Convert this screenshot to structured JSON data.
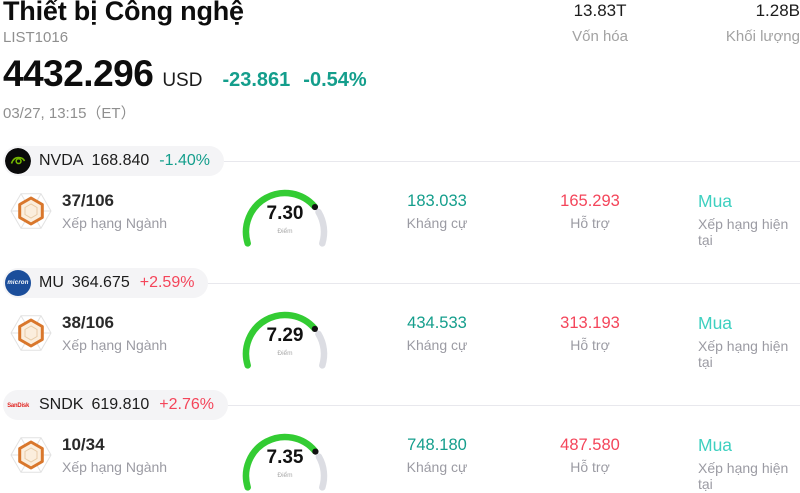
{
  "colors": {
    "teal": "#149e8c",
    "teal_light": "#3ed0c0",
    "red": "#f4455a",
    "gauge_green": "#33cc33",
    "gauge_track": "#dcdde3"
  },
  "header": {
    "title": "Thiết bị Công nghệ",
    "list_id": "LIST1016",
    "price": "4432.296",
    "currency": "USD",
    "change_amount": "-23.861",
    "change_percent": "-0.54%",
    "datetime": "03/27, 13:15（ET）",
    "market_cap": {
      "value": "13.83T",
      "label": "Vốn hóa"
    },
    "volume": {
      "value": "1.28B",
      "label": "Khối lượng"
    }
  },
  "labels": {
    "rank": "Xếp hạng Ngành",
    "score": "Điểm",
    "resistance": "Kháng cự",
    "support": "Hỗ trợ",
    "rating": "Xếp hạng hiện tại"
  },
  "rows": [
    {
      "symbol": "NVDA",
      "price": "168.840",
      "change": "-1.40%",
      "direction": "down",
      "logo": "nvidia-logo",
      "logo_text": "",
      "rank": "37/106",
      "score": 7.3,
      "score_display": "7.30",
      "score_max": 10,
      "resistance": "183.033",
      "support": "165.293",
      "rating": "Mua"
    },
    {
      "symbol": "MU",
      "price": "364.675",
      "change": "+2.59%",
      "direction": "up",
      "logo": "micron-logo",
      "logo_text": "micron",
      "rank": "38/106",
      "score": 7.29,
      "score_display": "7.29",
      "score_max": 10,
      "resistance": "434.533",
      "support": "313.193",
      "rating": "Mua"
    },
    {
      "symbol": "SNDK",
      "price": "619.810",
      "change": "+2.76%",
      "direction": "up",
      "logo": "sandisk-logo",
      "logo_text": "SanDisk",
      "rank": "10/34",
      "score": 7.35,
      "score_display": "7.35",
      "score_max": 10,
      "resistance": "748.180",
      "support": "487.580",
      "rating": "Mua"
    }
  ]
}
